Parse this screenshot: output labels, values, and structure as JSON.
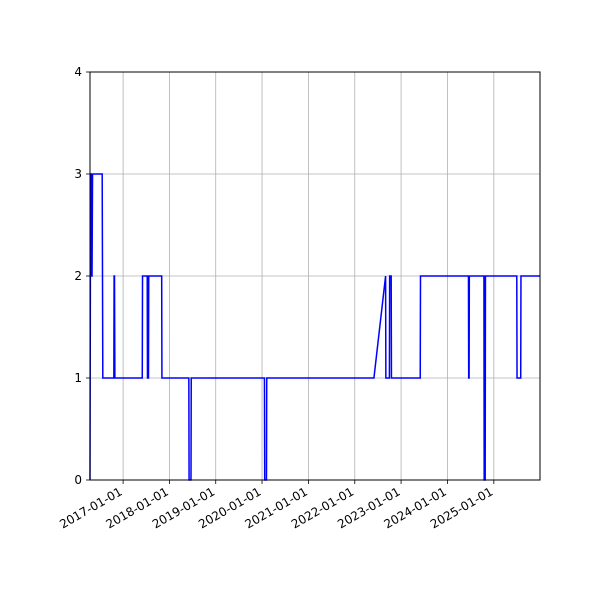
{
  "chart_data": {
    "type": "line",
    "title": "",
    "xlabel": "",
    "ylabel": "",
    "x_axis_kind": "date",
    "xlim": [
      "2016-04-15",
      "2025-12-31"
    ],
    "ylim": [
      0,
      4
    ],
    "grid": true,
    "line_color": "#0000ff",
    "x_ticks": [
      "2017-01-01",
      "2018-01-01",
      "2019-01-01",
      "2020-01-01",
      "2021-01-01",
      "2022-01-01",
      "2023-01-01",
      "2024-01-01",
      "2025-01-01"
    ],
    "y_ticks": [
      0,
      1,
      2,
      3,
      4
    ],
    "series": [
      {
        "points": [
          [
            "2016-04-15",
            0
          ],
          [
            "2016-04-18",
            2
          ],
          [
            "2016-04-20",
            3
          ],
          [
            "2016-04-25",
            3
          ],
          [
            "2016-04-27",
            2
          ],
          [
            "2016-05-01",
            2
          ],
          [
            "2016-05-05",
            3
          ],
          [
            "2016-07-20",
            3
          ],
          [
            "2016-07-25",
            1
          ],
          [
            "2016-10-20",
            1
          ],
          [
            "2016-10-22",
            2
          ],
          [
            "2016-10-25",
            2
          ],
          [
            "2016-10-28",
            1
          ],
          [
            "2017-06-01",
            1
          ],
          [
            "2017-06-03",
            2
          ],
          [
            "2017-07-10",
            2
          ],
          [
            "2017-07-12",
            1
          ],
          [
            "2017-07-20",
            1
          ],
          [
            "2017-07-22",
            2
          ],
          [
            "2017-11-01",
            2
          ],
          [
            "2017-11-03",
            1
          ],
          [
            "2018-06-03",
            1
          ],
          [
            "2018-06-05",
            0
          ],
          [
            "2018-06-20",
            0
          ],
          [
            "2018-06-22",
            1
          ],
          [
            "2020-01-20",
            1
          ],
          [
            "2020-01-22",
            0
          ],
          [
            "2020-02-05",
            0
          ],
          [
            "2020-02-07",
            1
          ],
          [
            "2022-06-01",
            1
          ],
          [
            "2022-09-01",
            2
          ],
          [
            "2022-09-03",
            1
          ],
          [
            "2022-10-01",
            1
          ],
          [
            "2022-10-03",
            2
          ],
          [
            "2022-10-15",
            2
          ],
          [
            "2022-10-17",
            1
          ],
          [
            "2023-06-01",
            1
          ],
          [
            "2023-06-03",
            2
          ],
          [
            "2024-06-15",
            2
          ],
          [
            "2024-06-17",
            1
          ],
          [
            "2024-06-20",
            1
          ],
          [
            "2024-06-22",
            2
          ],
          [
            "2024-10-15",
            2
          ],
          [
            "2024-10-17",
            0
          ],
          [
            "2024-10-25",
            0
          ],
          [
            "2024-10-27",
            2
          ],
          [
            "2025-07-01",
            2
          ],
          [
            "2025-07-03",
            1
          ],
          [
            "2025-08-01",
            1
          ],
          [
            "2025-08-03",
            2
          ],
          [
            "2025-12-31",
            2
          ]
        ]
      }
    ]
  }
}
